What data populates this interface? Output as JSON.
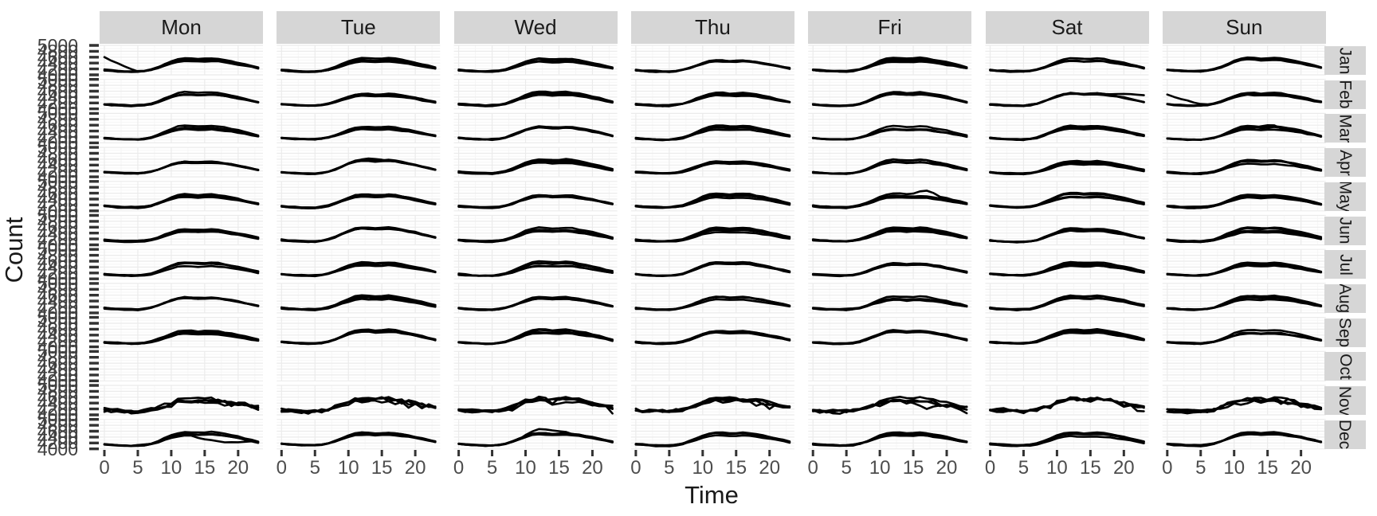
{
  "figure": {
    "ylabel": "Count",
    "xlabel": "Time"
  },
  "colors": {
    "strip_bg": "#d6d6d6",
    "strip_text": "#1a1a1a",
    "line": "#000000",
    "grid_major": "#ebebeb",
    "grid_minor": "#f6f6f6",
    "axis_tick": "#333333",
    "axis_text": "#4d4d4d",
    "title_text": "#1a1a1a",
    "panel_bg": "#ffffff"
  },
  "chart_data": {
    "type": "line",
    "description": "Faceted small-multiples line chart (facet grid): hourly count profiles with one thin black line per individual date, columns = day of week, rows = month; October row has no data.",
    "xlabel": "Time",
    "ylabel": "Count",
    "x": [
      0,
      1,
      2,
      3,
      4,
      5,
      6,
      7,
      8,
      9,
      10,
      11,
      12,
      13,
      14,
      15,
      16,
      17,
      18,
      19,
      20,
      21,
      22,
      23
    ],
    "x_ticks": [
      0,
      5,
      10,
      15,
      20
    ],
    "x_range": [
      0,
      23
    ],
    "y_range": [
      4000,
      5000
    ],
    "y_ticks": [
      4000,
      4200,
      4400,
      4600,
      4800,
      5000
    ],
    "facet_columns": [
      "Mon",
      "Tue",
      "Wed",
      "Thu",
      "Fri",
      "Sat",
      "Sun"
    ],
    "facet_rows": [
      "Jan",
      "Feb",
      "Mar",
      "Apr",
      "May",
      "Jun",
      "Jul",
      "Aug",
      "Sep",
      "Oct",
      "Nov",
      "Dec"
    ],
    "grid": true,
    "legend": "none",
    "lines_per_panel": 4,
    "line_value_spread": 36,
    "base_hourly_profile": [
      4160,
      4142,
      4128,
      4118,
      4112,
      4116,
      4135,
      4175,
      4245,
      4330,
      4415,
      4482,
      4512,
      4505,
      4488,
      4495,
      4508,
      4490,
      4455,
      4418,
      4378,
      4330,
      4282,
      4232
    ],
    "empty_rows": [
      "Oct"
    ],
    "noisy_rows": [
      "Nov"
    ],
    "anomalies": [
      {
        "row": "Jan",
        "col": "Mon",
        "line": 1,
        "type": "spike_start",
        "until_hour": 5,
        "magnitude": 430
      },
      {
        "row": "Feb",
        "col": "Sun",
        "line": 2,
        "type": "spike_start",
        "until_hour": 6,
        "magnitude": 310
      },
      {
        "row": "Feb",
        "col": "Sat",
        "line": 1,
        "type": "rise_end",
        "from_hour": 17,
        "magnitude": 240
      },
      {
        "row": "Mar",
        "col": "Sun",
        "line": 1,
        "type": "peak",
        "from_hour": 13,
        "to_hour": 17,
        "magnitude": 100
      },
      {
        "row": "Apr",
        "col": "Tue",
        "line": 2,
        "type": "peak",
        "from_hour": 11,
        "to_hour": 16,
        "magnitude": 95
      },
      {
        "row": "May",
        "col": "Fri",
        "line": 3,
        "type": "peak",
        "from_hour": 15,
        "to_hour": 19,
        "magnitude": 110
      },
      {
        "row": "Nov",
        "col": "Sat",
        "line": 0,
        "type": "peak",
        "from_hour": 0,
        "to_hour": 3,
        "magnitude": 95
      },
      {
        "row": "Nov",
        "col": "Fri",
        "line": 2,
        "type": "dip",
        "from_hour": 14,
        "to_hour": 20,
        "magnitude": 150
      },
      {
        "row": "Dec",
        "col": "Mon",
        "line": 1,
        "type": "dip",
        "from_hour": 13,
        "to_hour": 22,
        "magnitude": 175
      },
      {
        "row": "Dec",
        "col": "Wed",
        "line": 0,
        "type": "peak",
        "from_hour": 9,
        "to_hour": 17,
        "magnitude": 165
      }
    ]
  }
}
